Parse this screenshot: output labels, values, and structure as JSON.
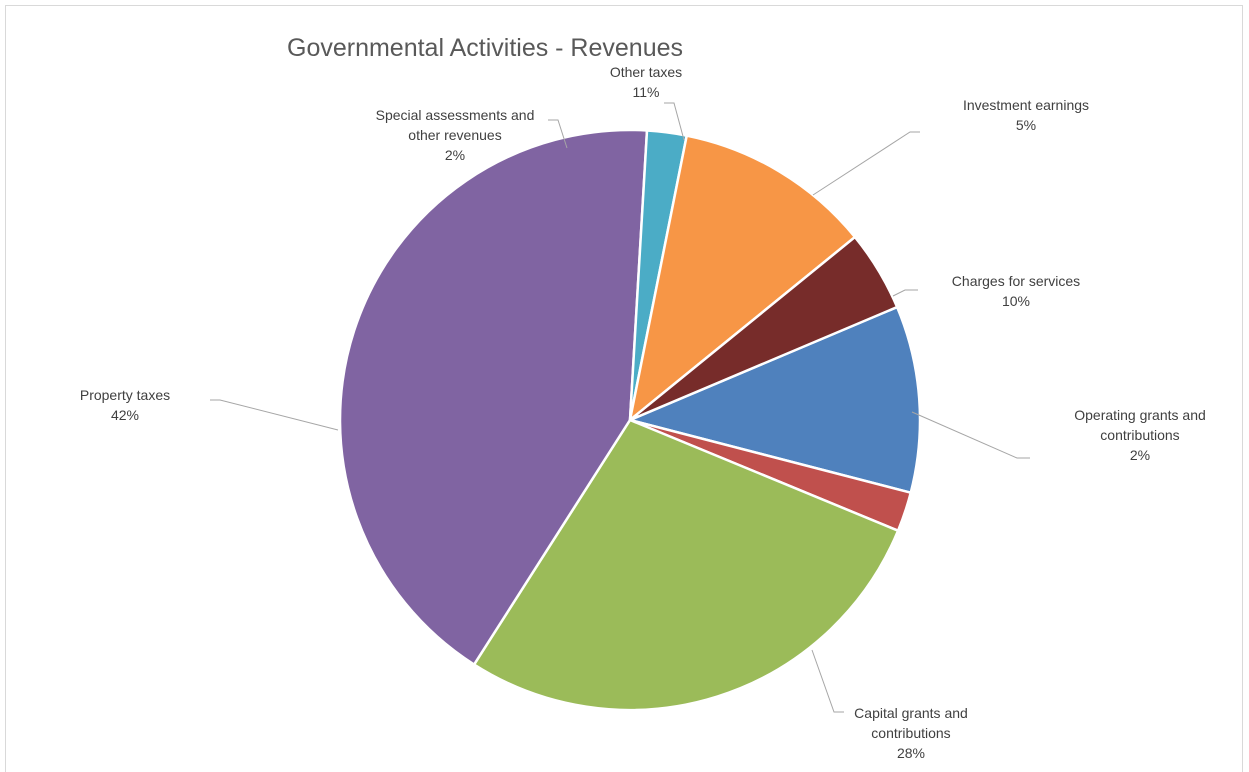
{
  "chart_data": {
    "type": "pie",
    "title": "Governmental Activities - Revenues",
    "start_angle_deg": 0,
    "slices": [
      {
        "label_lines": [
          "Charges for services"
        ],
        "pct_label": "10%",
        "value": 10.4,
        "color": "#4f81bd"
      },
      {
        "label_lines": [
          "Operating grants and",
          "contributions"
        ],
        "pct_label": "2%",
        "value": 2.2,
        "color": "#c0504d"
      },
      {
        "label_lines": [
          "Capital grants and",
          "contributions"
        ],
        "pct_label": "28%",
        "value": 27.8,
        "color": "#9bbb59"
      },
      {
        "label_lines": [
          "Property taxes"
        ],
        "pct_label": "42%",
        "value": 41.9,
        "color": "#8064a2"
      },
      {
        "label_lines": [
          "Special assessments and",
          "other revenues"
        ],
        "pct_label": "2%",
        "value": 2.2,
        "color": "#4bacc6"
      },
      {
        "label_lines": [
          "Other taxes"
        ],
        "pct_label": "11%",
        "value": 11.0,
        "color": "#f79646"
      },
      {
        "label_lines": [
          "Investment earnings"
        ],
        "pct_label": "5%",
        "value": 4.5,
        "color": "#772c2a"
      }
    ]
  }
}
